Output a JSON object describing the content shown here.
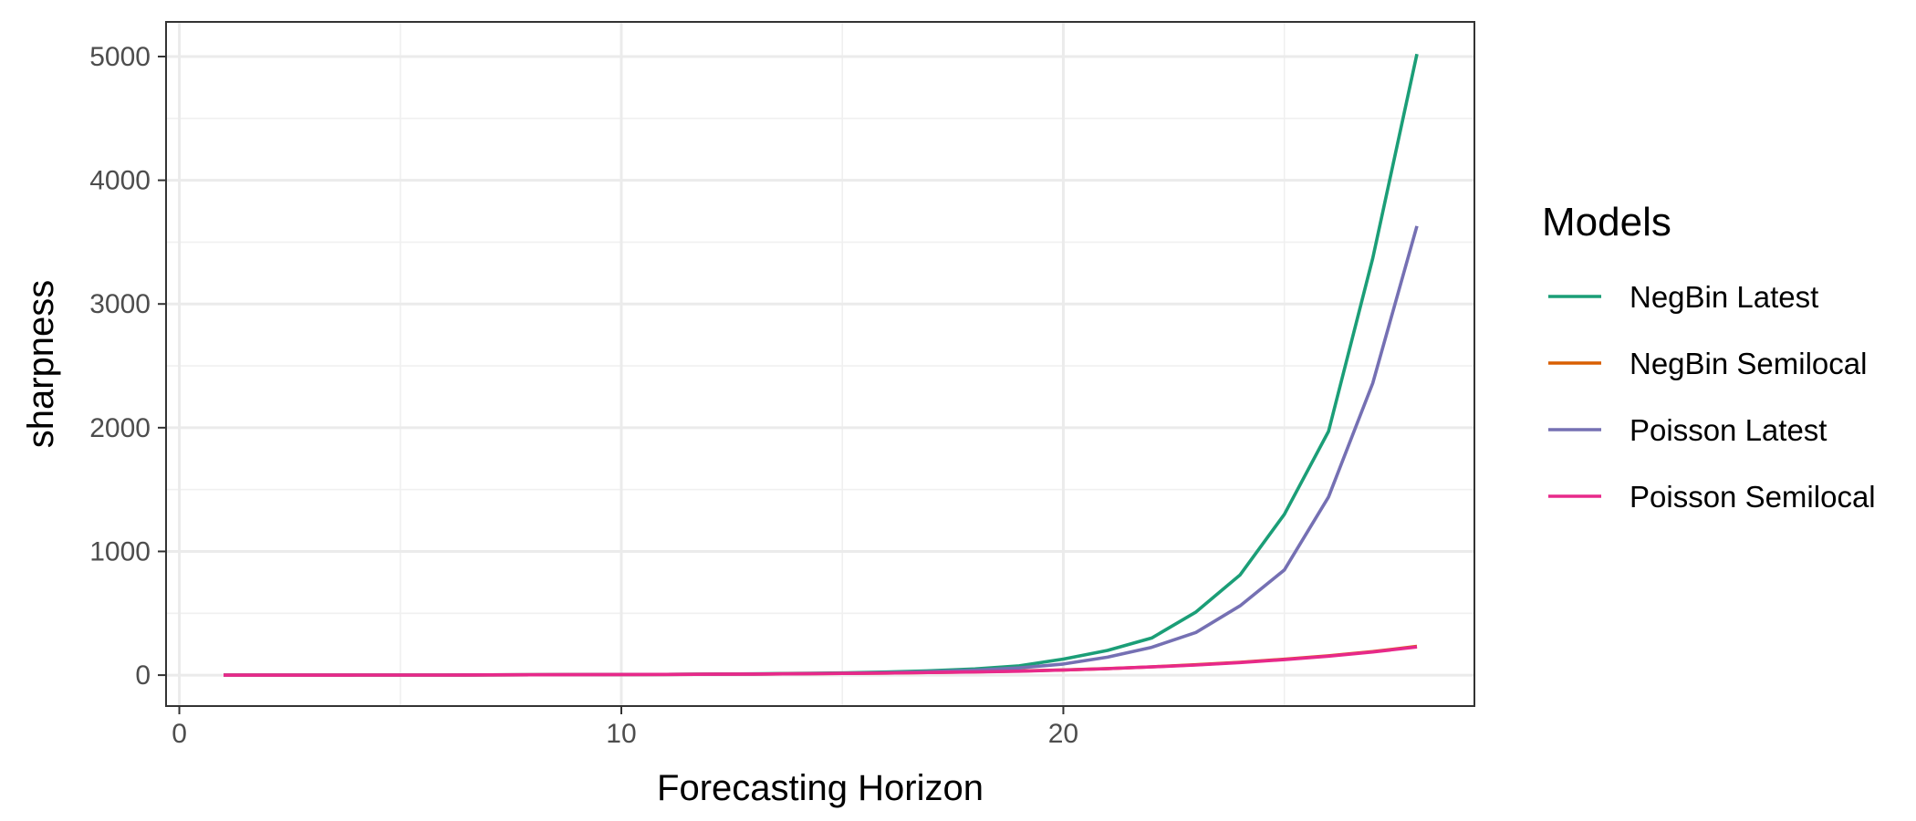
{
  "chart_data": {
    "type": "line",
    "title": "",
    "xlabel": "Forecasting Horizon",
    "ylabel": "sharpness",
    "xlim": [
      -0.3,
      29.3
    ],
    "ylim": [
      -250,
      5280
    ],
    "x_ticks": [
      0,
      10,
      20
    ],
    "y_ticks": [
      0,
      1000,
      2000,
      3000,
      4000,
      5000
    ],
    "grid": true,
    "legend_title": "Models",
    "legend_position": "right",
    "x": [
      1,
      2,
      3,
      4,
      5,
      6,
      7,
      8,
      9,
      10,
      11,
      12,
      13,
      14,
      15,
      16,
      17,
      18,
      19,
      20,
      21,
      22,
      23,
      24,
      25,
      26,
      27,
      28
    ],
    "series": [
      {
        "name": "NegBin Latest",
        "color": "#1b9e77",
        "values": [
          0,
          0,
          0,
          1,
          1,
          1,
          2,
          3,
          4,
          5,
          6,
          8,
          10,
          14,
          18,
          25,
          35,
          50,
          75,
          130,
          200,
          300,
          510,
          810,
          1300,
          1970,
          3370,
          5020
        ]
      },
      {
        "name": "NegBin Semilocal",
        "color": "#d95f02",
        "values": [
          0,
          0,
          0,
          1,
          1,
          1,
          2,
          3,
          4,
          5,
          6,
          7,
          9,
          11,
          14,
          17,
          21,
          27,
          33,
          42,
          53,
          67,
          84,
          104,
          128,
          156,
          190,
          232
        ]
      },
      {
        "name": "Poisson Latest",
        "color": "#7570b3",
        "values": [
          0,
          0,
          0,
          1,
          1,
          1,
          2,
          3,
          4,
          5,
          6,
          7,
          9,
          12,
          15,
          20,
          28,
          40,
          58,
          90,
          145,
          225,
          345,
          560,
          850,
          1440,
          2360,
          3630
        ]
      },
      {
        "name": "Poisson Semilocal",
        "color": "#e7298a",
        "values": [
          0,
          0,
          0,
          1,
          1,
          1,
          2,
          3,
          4,
          5,
          6,
          7,
          9,
          11,
          14,
          17,
          21,
          26,
          32,
          41,
          52,
          66,
          82,
          102,
          125,
          153,
          187,
          228
        ]
      }
    ]
  }
}
